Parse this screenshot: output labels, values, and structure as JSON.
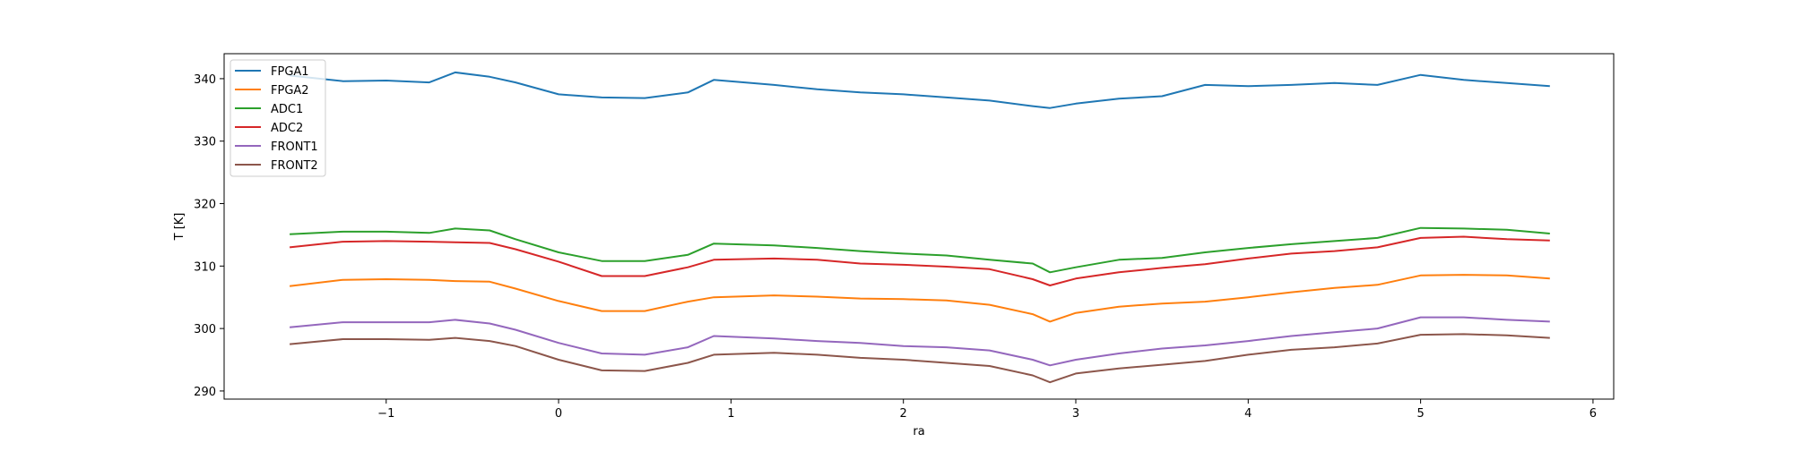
{
  "chart_data": {
    "type": "line",
    "title": "",
    "xlabel": "ra",
    "ylabel": "T [K]",
    "xlim": [
      -1.94,
      6.12
    ],
    "ylim": [
      288.7,
      344.0
    ],
    "xticks": [
      -1,
      0,
      1,
      2,
      3,
      4,
      5,
      6
    ],
    "xtick_labels": [
      "−1",
      "0",
      "1",
      "2",
      "3",
      "4",
      "5",
      "6"
    ],
    "yticks": [
      290,
      300,
      310,
      320,
      330,
      340
    ],
    "ytick_labels": [
      "290",
      "300",
      "310",
      "320",
      "330",
      "340"
    ],
    "grid": false,
    "legend_placement": "upper-left",
    "x": [
      -1.56,
      -1.25,
      -1,
      -0.75,
      -0.6,
      -0.4,
      -0.25,
      0,
      0.25,
      0.5,
      0.75,
      0.9,
      1.25,
      1.5,
      1.75,
      2,
      2.25,
      2.5,
      2.75,
      2.85,
      3,
      3.25,
      3.5,
      3.75,
      4,
      4.25,
      4.5,
      4.75,
      5,
      5.25,
      5.5,
      5.75
    ],
    "series": [
      {
        "name": "FPGA1",
        "color": "#1f77b4",
        "values": [
          340.5,
          339.6,
          339.7,
          339.4,
          341,
          340.3,
          339.4,
          337.5,
          337,
          336.9,
          337.8,
          339.8,
          339,
          338.3,
          337.8,
          337.5,
          337,
          336.5,
          335.6,
          335.3,
          336,
          336.8,
          337.2,
          339,
          338.8,
          339,
          339.3,
          339,
          340.6,
          339.8,
          339.3,
          338.8
        ]
      },
      {
        "name": "FPGA2",
        "color": "#ff7f0e",
        "values": [
          306.8,
          307.8,
          307.9,
          307.8,
          307.6,
          307.5,
          306.4,
          304.4,
          302.8,
          302.8,
          304.3,
          305,
          305.3,
          305.1,
          304.8,
          304.7,
          304.5,
          303.8,
          302.3,
          301.1,
          302.5,
          303.5,
          304,
          304.3,
          305,
          305.8,
          306.5,
          307,
          308.5,
          308.6,
          308.5,
          308
        ]
      },
      {
        "name": "ADC1",
        "color": "#2ca02c",
        "values": [
          315.1,
          315.5,
          315.5,
          315.3,
          316,
          315.7,
          314.3,
          312.2,
          310.8,
          310.8,
          311.8,
          313.6,
          313.3,
          312.9,
          312.4,
          312,
          311.7,
          311,
          310.4,
          309,
          309.8,
          311,
          311.3,
          312.2,
          312.9,
          313.5,
          314,
          314.5,
          316.1,
          316,
          315.8,
          315.2
        ]
      },
      {
        "name": "ADC2",
        "color": "#d62728",
        "values": [
          313,
          313.9,
          314,
          313.9,
          313.8,
          313.7,
          312.7,
          310.7,
          308.4,
          308.4,
          309.8,
          311,
          311.2,
          311,
          310.4,
          310.2,
          309.9,
          309.5,
          307.9,
          306.9,
          308,
          309,
          309.7,
          310.3,
          311.2,
          312,
          312.4,
          313,
          314.5,
          314.7,
          314.3,
          314.1
        ]
      },
      {
        "name": "FRONT1",
        "color": "#9467bd",
        "values": [
          300.2,
          301,
          301,
          301,
          301.4,
          300.8,
          299.8,
          297.7,
          296,
          295.8,
          297,
          298.8,
          298.4,
          298,
          297.7,
          297.2,
          297,
          296.5,
          295,
          294.1,
          295,
          296,
          296.8,
          297.3,
          298,
          298.8,
          299.4,
          300,
          301.8,
          301.8,
          301.4,
          301.1
        ]
      },
      {
        "name": "FRONT2",
        "color": "#8c564b",
        "values": [
          297.5,
          298.3,
          298.3,
          298.2,
          298.5,
          298,
          297.2,
          295,
          293.3,
          293.2,
          294.5,
          295.8,
          296.1,
          295.8,
          295.3,
          295,
          294.5,
          294,
          292.5,
          291.4,
          292.8,
          293.6,
          294.2,
          294.8,
          295.8,
          296.6,
          297,
          297.6,
          299,
          299.1,
          298.9,
          298.5
        ]
      }
    ]
  }
}
